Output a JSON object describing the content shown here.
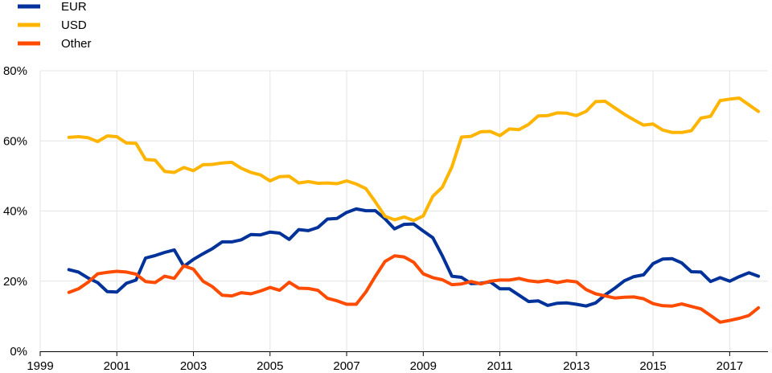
{
  "chart_data": {
    "type": "line",
    "title": "",
    "xlabel": "",
    "ylabel": "",
    "xlim": [
      1999,
      2018
    ],
    "ylim": [
      0,
      80
    ],
    "x_ticks": [
      "1999",
      "2001",
      "2003",
      "2005",
      "2007",
      "2009",
      "2011",
      "2013",
      "2015",
      "2017"
    ],
    "x_tick_values": [
      1999,
      2001,
      2003,
      2005,
      2007,
      2009,
      2011,
      2013,
      2015,
      2017
    ],
    "y_ticks": [
      "0%",
      "20%",
      "40%",
      "60%",
      "80%"
    ],
    "y_tick_values": [
      0,
      20,
      40,
      60,
      80
    ],
    "grid": true,
    "legend_position": "top-left",
    "series": [
      {
        "name": "EUR",
        "color": "#003299",
        "x": [
          1999.75,
          2000.0,
          2000.25,
          2000.5,
          2000.75,
          2001.0,
          2001.25,
          2001.5,
          2001.75,
          2002.0,
          2002.25,
          2002.5,
          2002.75,
          2003.0,
          2003.25,
          2003.5,
          2003.75,
          2004.0,
          2004.25,
          2004.5,
          2004.75,
          2005.0,
          2005.25,
          2005.5,
          2005.75,
          2006.0,
          2006.25,
          2006.5,
          2006.75,
          2007.0,
          2007.25,
          2007.5,
          2007.75,
          2008.0,
          2008.25,
          2008.5,
          2008.75,
          2009.0,
          2009.25,
          2009.5,
          2009.75,
          2010.0,
          2010.25,
          2010.5,
          2010.75,
          2011.0,
          2011.25,
          2011.5,
          2011.75,
          2012.0,
          2012.25,
          2012.5,
          2012.75,
          2013.0,
          2013.25,
          2013.5,
          2013.75,
          2014.0,
          2014.25,
          2014.5,
          2014.75,
          2015.0,
          2015.25,
          2015.5,
          2015.75,
          2016.0,
          2016.25,
          2016.5,
          2016.75,
          2017.0,
          2017.25,
          2017.5,
          2017.75
        ],
        "values": [
          23.3,
          22.6,
          20.9,
          19.6,
          17.0,
          16.9,
          19.4,
          20.3,
          26.6,
          27.3,
          28.2,
          28.9,
          24.2,
          26.2,
          27.8,
          29.3,
          31.2,
          31.2,
          31.8,
          33.3,
          33.2,
          34.0,
          33.7,
          31.9,
          34.7,
          34.4,
          35.3,
          37.7,
          37.9,
          39.6,
          40.6,
          40.1,
          40.1,
          37.8,
          34.9,
          36.2,
          36.3,
          34.3,
          32.4,
          27.2,
          21.4,
          21.1,
          19.3,
          19.4,
          19.8,
          17.8,
          17.8,
          16.0,
          14.2,
          14.4,
          13.1,
          13.7,
          13.8,
          13.4,
          12.9,
          13.8,
          16.1,
          18.0,
          20.1,
          21.3,
          21.8,
          25.0,
          26.3,
          26.4,
          25.2,
          22.7,
          22.6,
          19.9,
          21.0,
          20.0,
          21.3,
          22.4,
          21.4
        ]
      },
      {
        "name": "USD",
        "color": "#ffb400",
        "x": [
          1999.75,
          2000.0,
          2000.25,
          2000.5,
          2000.75,
          2001.0,
          2001.25,
          2001.5,
          2001.75,
          2002.0,
          2002.25,
          2002.5,
          2002.75,
          2003.0,
          2003.25,
          2003.5,
          2003.75,
          2004.0,
          2004.25,
          2004.5,
          2004.75,
          2005.0,
          2005.25,
          2005.5,
          2005.75,
          2006.0,
          2006.25,
          2006.5,
          2006.75,
          2007.0,
          2007.25,
          2007.5,
          2007.75,
          2008.0,
          2008.25,
          2008.5,
          2008.75,
          2009.0,
          2009.25,
          2009.5,
          2009.75,
          2010.0,
          2010.25,
          2010.5,
          2010.75,
          2011.0,
          2011.25,
          2011.5,
          2011.75,
          2012.0,
          2012.25,
          2012.5,
          2012.75,
          2013.0,
          2013.25,
          2013.5,
          2013.75,
          2014.0,
          2014.25,
          2014.5,
          2014.75,
          2015.0,
          2015.25,
          2015.5,
          2015.75,
          2016.0,
          2016.25,
          2016.5,
          2016.75,
          2017.0,
          2017.25,
          2017.5,
          2017.75
        ],
        "values": [
          61.0,
          61.2,
          60.9,
          59.8,
          61.4,
          61.2,
          59.4,
          59.3,
          54.7,
          54.5,
          51.3,
          51.0,
          52.4,
          51.5,
          53.2,
          53.3,
          53.7,
          53.9,
          52.2,
          51.0,
          50.3,
          48.6,
          49.8,
          49.9,
          48.0,
          48.4,
          47.9,
          48.0,
          47.8,
          48.6,
          47.7,
          46.4,
          42.6,
          38.5,
          37.5,
          38.3,
          37.3,
          38.6,
          44.2,
          46.8,
          52.6,
          61.1,
          61.3,
          62.6,
          62.7,
          61.5,
          63.4,
          63.2,
          64.7,
          67.1,
          67.2,
          68.0,
          67.9,
          67.2,
          68.4,
          71.2,
          71.3,
          69.4,
          67.6,
          66.0,
          64.5,
          64.8,
          63.1,
          62.4,
          62.4,
          62.9,
          66.5,
          67.0,
          71.5,
          71.9,
          72.2,
          70.3,
          68.4
        ]
      },
      {
        "name": "Other",
        "color": "#ff4b00",
        "x": [
          1999.75,
          2000.0,
          2000.25,
          2000.5,
          2000.75,
          2001.0,
          2001.25,
          2001.5,
          2001.75,
          2002.0,
          2002.25,
          2002.5,
          2002.75,
          2003.0,
          2003.25,
          2003.5,
          2003.75,
          2004.0,
          2004.25,
          2004.5,
          2004.75,
          2005.0,
          2005.25,
          2005.5,
          2005.75,
          2006.0,
          2006.25,
          2006.5,
          2006.75,
          2007.0,
          2007.25,
          2007.5,
          2007.75,
          2008.0,
          2008.25,
          2008.5,
          2008.75,
          2009.0,
          2009.25,
          2009.5,
          2009.75,
          2010.0,
          2010.25,
          2010.5,
          2010.75,
          2011.0,
          2011.25,
          2011.5,
          2011.75,
          2012.0,
          2012.25,
          2012.5,
          2012.75,
          2013.0,
          2013.25,
          2013.5,
          2013.75,
          2014.0,
          2014.25,
          2014.5,
          2014.75,
          2015.0,
          2015.25,
          2015.5,
          2015.75,
          2016.0,
          2016.25,
          2016.5,
          2016.75,
          2017.0,
          2017.25,
          2017.5,
          2017.75
        ],
        "values": [
          16.8,
          17.8,
          19.7,
          22.1,
          22.5,
          22.8,
          22.6,
          22.0,
          19.9,
          19.6,
          21.4,
          20.8,
          24.4,
          23.4,
          20.0,
          18.4,
          16.0,
          15.8,
          16.7,
          16.4,
          17.2,
          18.2,
          17.4,
          19.7,
          18.0,
          17.9,
          17.4,
          15.1,
          14.4,
          13.4,
          13.4,
          16.9,
          21.4,
          25.6,
          27.2,
          26.9,
          25.4,
          22.1,
          21.0,
          20.4,
          19.0,
          19.2,
          19.9,
          19.2,
          20.0,
          20.3,
          20.3,
          20.8,
          20.1,
          19.8,
          20.2,
          19.6,
          20.1,
          19.8,
          17.6,
          16.4,
          15.8,
          15.2,
          15.4,
          15.5,
          15.0,
          13.6,
          13.0,
          12.9,
          13.5,
          12.8,
          12.1,
          10.2,
          8.3,
          8.8,
          9.4,
          10.2,
          12.4
        ]
      }
    ]
  }
}
